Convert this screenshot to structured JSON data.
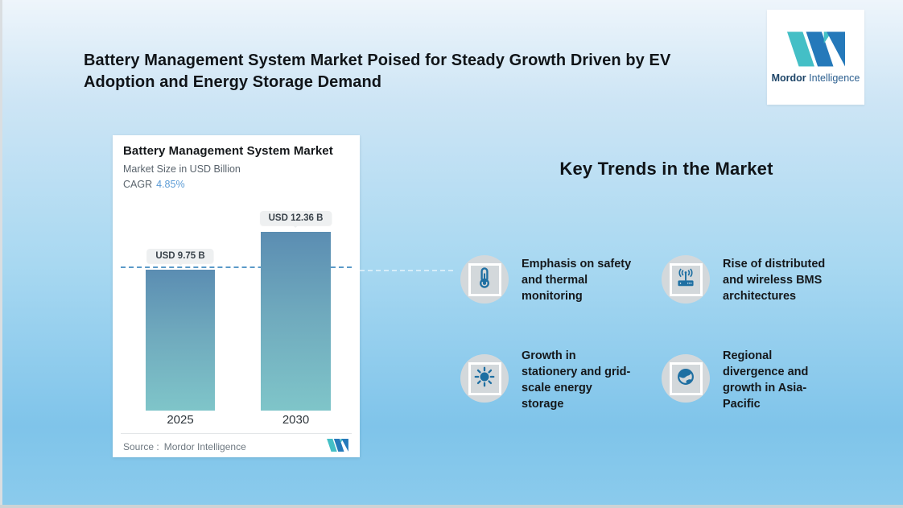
{
  "header": {
    "title": "Battery Management System Market Poised for Steady Growth Driven by EV\nAdoption and Energy Storage Demand"
  },
  "logo": {
    "name_bold": "Mordor",
    "name_rest": "Intelligence"
  },
  "chart_data": {
    "type": "bar",
    "title": "Battery Management System Market",
    "subtitle": "Market Size in USD Billion",
    "cagr_label": "CAGR",
    "cagr_value": "4.85%",
    "categories": [
      "2025",
      "2030"
    ],
    "values": [
      9.75,
      12.36
    ],
    "value_labels": [
      "USD 9.75 B",
      "USD 12.36 B"
    ],
    "unit": "USD Billion",
    "reference_line_value": 9.75,
    "grid": "off",
    "legend": "none",
    "source_label": "Source :",
    "source_name": "Mordor Intelligence"
  },
  "trends": {
    "heading": "Key Trends in the Market",
    "items": [
      {
        "icon": "thermometer-icon",
        "text": "Emphasis on safety\nand thermal\nmonitoring"
      },
      {
        "icon": "wireless-router-icon",
        "text": "Rise of distributed\nand wireless BMS\narchitectures"
      },
      {
        "icon": "sun-icon",
        "text": "Growth in\nstationery and grid-\nscale energy\nstorage"
      },
      {
        "icon": "globe-icon",
        "text": "Regional\ndivergence and\ngrowth in Asia-\nPacific"
      }
    ]
  },
  "colors": {
    "accent_blue": "#5b9bd5",
    "bar_gradient_top": "#5b8db2",
    "bar_gradient_bottom": "#7fc5c9",
    "dashed_reference": "#5b9ac8",
    "brand_teal": "#44bfc6",
    "brand_blue": "#2579ba",
    "trend_icon_blue": "#1e6fa2",
    "trend_circle_gray": "#d3d8db"
  }
}
